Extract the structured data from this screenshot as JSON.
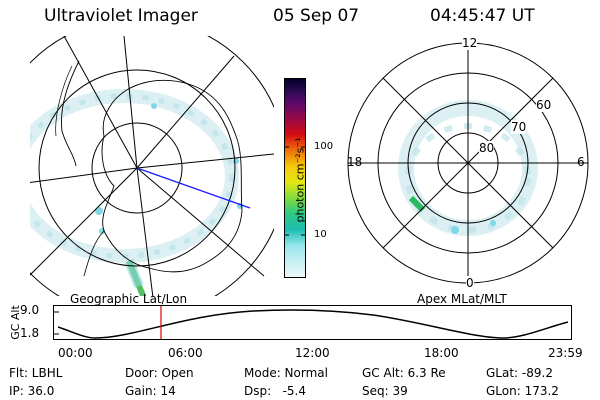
{
  "header": {
    "instrument": "Ultraviolet Imager",
    "date": "05 Sep 07",
    "time": "04:45:47 UT"
  },
  "colorbar": {
    "unit_label": "photon cm⁻²s⁻¹",
    "ticks": [
      "100",
      "10"
    ],
    "colors": [
      "#000028",
      "#1a0a3c",
      "#3c0a5a",
      "#5a0a6e",
      "#780a64",
      "#960a46",
      "#b40a28",
      "#d20a14",
      "#e63c0a",
      "#f06e0a",
      "#f5a00a",
      "#f5c80a",
      "#e6e614",
      "#b4e628",
      "#82dc3c",
      "#50d250",
      "#2dc882",
      "#1ebeb4",
      "#50d2dc",
      "#96e6ec",
      "#c8f0f4",
      "#e6f8fa"
    ]
  },
  "left_panel": {
    "label": "Geographic Lat/Lon"
  },
  "right_panel": {
    "label": "Apex MLat/MLT",
    "mlt_labels": {
      "top": "12",
      "left": "18",
      "right": "6",
      "bottom": "0"
    },
    "lat_labels": [
      "60",
      "70",
      "80"
    ]
  },
  "altitude_plot": {
    "ylabel": "GC Alt",
    "yticks": [
      "9.0",
      "1.8"
    ],
    "xticks": [
      "00:00",
      "06:00",
      "12:00",
      "18:00",
      "23:59"
    ],
    "marker_color": "#e00000"
  },
  "info": {
    "filter": "Flt: LBHL",
    "ip": "IP: 36.0",
    "door": "Door: Open",
    "gain": "Gain: 14",
    "mode": "Mode: Normal",
    "dsp": "Dsp:   -5.4",
    "gc_alt": "GC Alt: 6.3 Re",
    "seq": "Seq: 39",
    "glat": "GLat: -89.2",
    "glon": "GLon: 173.2"
  }
}
